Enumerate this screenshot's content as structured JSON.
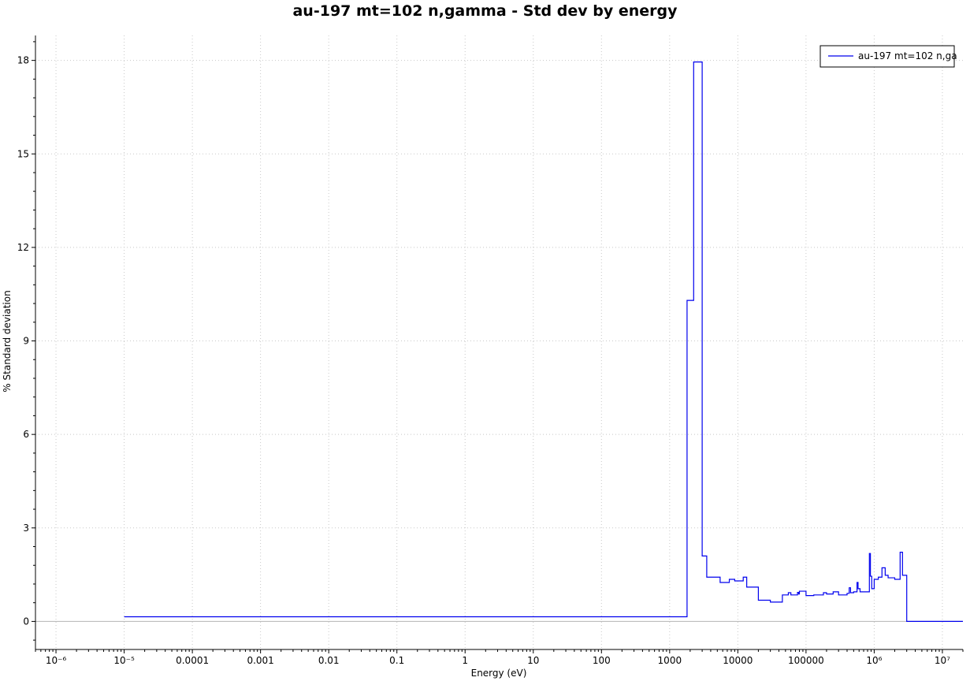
{
  "chart_data": {
    "type": "line",
    "title": "au-197 mt=102 n,gamma - Std dev by energy",
    "xlabel": "Energy (eV)",
    "ylabel": "% Standard deviation",
    "x_scale": "log",
    "xlim": [
      5e-07,
      20000000.0
    ],
    "ylim": [
      -0.9,
      18.8
    ],
    "grid": true,
    "legend": {
      "position": "top-right",
      "entries": [
        "au-197 mt=102 n,ga"
      ]
    },
    "x_ticks": [
      {
        "value": 1e-06,
        "label": "10⁻⁶"
      },
      {
        "value": 1e-05,
        "label": "10⁻⁵"
      },
      {
        "value": 0.0001,
        "label": "0.0001"
      },
      {
        "value": 0.001,
        "label": "0.001"
      },
      {
        "value": 0.01,
        "label": "0.01"
      },
      {
        "value": 0.1,
        "label": "0.1"
      },
      {
        "value": 1,
        "label": "1"
      },
      {
        "value": 10,
        "label": "10"
      },
      {
        "value": 100,
        "label": "100"
      },
      {
        "value": 1000,
        "label": "1000"
      },
      {
        "value": 10000,
        "label": "10000"
      },
      {
        "value": 100000,
        "label": "100000"
      },
      {
        "value": 1000000,
        "label": "10⁶"
      },
      {
        "value": 10000000,
        "label": "10⁷"
      }
    ],
    "y_ticks": [
      {
        "value": 0,
        "label": "0"
      },
      {
        "value": 3,
        "label": "3"
      },
      {
        "value": 6,
        "label": "6"
      },
      {
        "value": 9,
        "label": "9"
      },
      {
        "value": 12,
        "label": "12"
      },
      {
        "value": 15,
        "label": "15"
      },
      {
        "value": 18,
        "label": "18"
      }
    ],
    "series": [
      {
        "name": "au-197 mt=102 n,ga",
        "color": "#0000ee",
        "step": "post",
        "x": [
          1e-05,
          1800,
          2250,
          3000,
          3500,
          5500,
          7500,
          9000,
          12000,
          13500,
          20000,
          30000,
          45000,
          55000,
          60000,
          75000,
          78000,
          80000,
          100000,
          130000,
          180000,
          200000,
          250000,
          300000,
          400000,
          430000,
          450000,
          500000,
          560000,
          580000,
          620000,
          850000,
          880000,
          920000,
          1000000,
          1150000,
          1300000,
          1450000,
          1600000,
          2000000,
          2400000,
          2600000,
          3000000,
          20000000
        ],
        "y": [
          0.15,
          10.3,
          17.95,
          2.1,
          1.42,
          1.25,
          1.35,
          1.3,
          1.42,
          1.1,
          0.68,
          0.62,
          0.85,
          0.92,
          0.85,
          0.93,
          0.88,
          0.97,
          0.83,
          0.85,
          0.92,
          0.88,
          0.95,
          0.85,
          0.9,
          1.08,
          0.92,
          0.95,
          1.25,
          1.05,
          0.95,
          2.18,
          1.45,
          1.05,
          1.35,
          1.42,
          1.72,
          1.48,
          1.4,
          1.35,
          2.22,
          1.48,
          0.0,
          0.0
        ]
      }
    ]
  }
}
